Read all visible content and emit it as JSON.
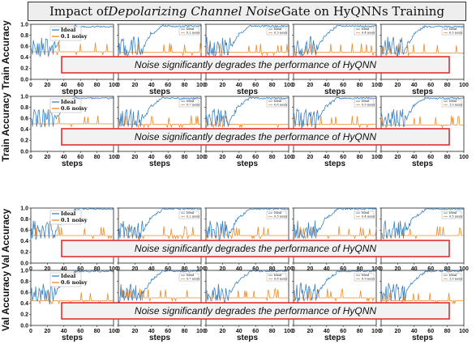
{
  "title": {
    "prefix": "Impact of ",
    "emphasis": "Depolarizing Channel Noise",
    "suffix": " Gate on HyQNNs Training"
  },
  "banner_text": "Noise significantly degrades the performance of HyQNN",
  "colors": {
    "ideal": "#3b82c4",
    "noisy": "#f08a24",
    "banner_border": "#e03030",
    "banner_fill": "#f2f2f2"
  },
  "chart_data": {
    "type": "line",
    "x_label": "steps",
    "x_ticks": [
      0,
      20,
      40,
      60,
      80,
      100
    ],
    "xlim": [
      0,
      100
    ],
    "y_ticks": [
      "0.0",
      "0.2",
      "0.4",
      "0.6",
      "0.8",
      "1.0"
    ],
    "ylim": [
      0,
      1
    ],
    "rows": [
      {
        "ylabel": "Train Accuracy",
        "panels": [
          {
            "legend": [
              "Ideal",
              "0.1 noisy"
            ],
            "ideal_final": 0.97,
            "noisy_level": 0.5
          },
          {
            "legend": [
              "Ideal",
              "0.2 noisy"
            ],
            "ideal_final": 0.98,
            "noisy_level": 0.49
          },
          {
            "legend": [
              "Ideal",
              "0.3 noisy"
            ],
            "ideal_final": 0.98,
            "noisy_level": 0.49
          },
          {
            "legend": [
              "Ideal",
              "0.4 noisy"
            ],
            "ideal_final": 0.98,
            "noisy_level": 0.49
          },
          {
            "legend": [
              "Ideal",
              "0.5 noisy"
            ],
            "ideal_final": 0.97,
            "noisy_level": 0.48
          }
        ]
      },
      {
        "ylabel": "Train Accuracy",
        "panels": [
          {
            "legend": [
              "Ideal",
              "0.6 noisy"
            ],
            "ideal_final": 0.98,
            "noisy_level": 0.5
          },
          {
            "legend": [
              "Ideal",
              "0.7 noisy"
            ],
            "ideal_final": 0.98,
            "noisy_level": 0.49
          },
          {
            "legend": [
              "Ideal",
              "0.8 noisy"
            ],
            "ideal_final": 0.98,
            "noisy_level": 0.49
          },
          {
            "legend": [
              "Ideal",
              "0.9 noisy"
            ],
            "ideal_final": 0.98,
            "noisy_level": 0.49
          },
          {
            "legend": [
              "Ideal",
              "1.0 noisy"
            ],
            "ideal_final": 0.98,
            "noisy_level": 0.48
          }
        ]
      },
      {
        "ylabel": "Val Accuracy",
        "panels": [
          {
            "legend": [
              "Ideal",
              "0.1 noisy"
            ],
            "ideal_final": 1.0,
            "noisy_level": 0.5
          },
          {
            "legend": [
              "Ideal",
              "0.2 noisy"
            ],
            "ideal_final": 1.0,
            "noisy_level": 0.5
          },
          {
            "legend": [
              "Ideal",
              "0.3 noisy"
            ],
            "ideal_final": 1.0,
            "noisy_level": 0.5
          },
          {
            "legend": [
              "Ideal",
              "0.4 noisy"
            ],
            "ideal_final": 1.0,
            "noisy_level": 0.5
          },
          {
            "legend": [
              "Ideal",
              "0.5 noisy"
            ],
            "ideal_final": 1.0,
            "noisy_level": 0.5
          }
        ]
      },
      {
        "ylabel": "Val Accuracy",
        "panels": [
          {
            "legend": [
              "Ideal",
              "0.6 noisy"
            ],
            "ideal_final": 1.0,
            "noisy_level": 0.45
          },
          {
            "legend": [
              "Ideal",
              "0.7 noisy"
            ],
            "ideal_final": 1.0,
            "noisy_level": 0.5
          },
          {
            "legend": [
              "Ideal",
              "0.8 noisy"
            ],
            "ideal_final": 1.0,
            "noisy_level": 0.5
          },
          {
            "legend": [
              "Ideal",
              "0.9 noisy"
            ],
            "ideal_final": 1.0,
            "noisy_level": 0.5
          },
          {
            "legend": [
              "Ideal",
              "1.0 noisy"
            ],
            "ideal_final": 1.0,
            "noisy_level": 0.45
          }
        ]
      }
    ]
  }
}
